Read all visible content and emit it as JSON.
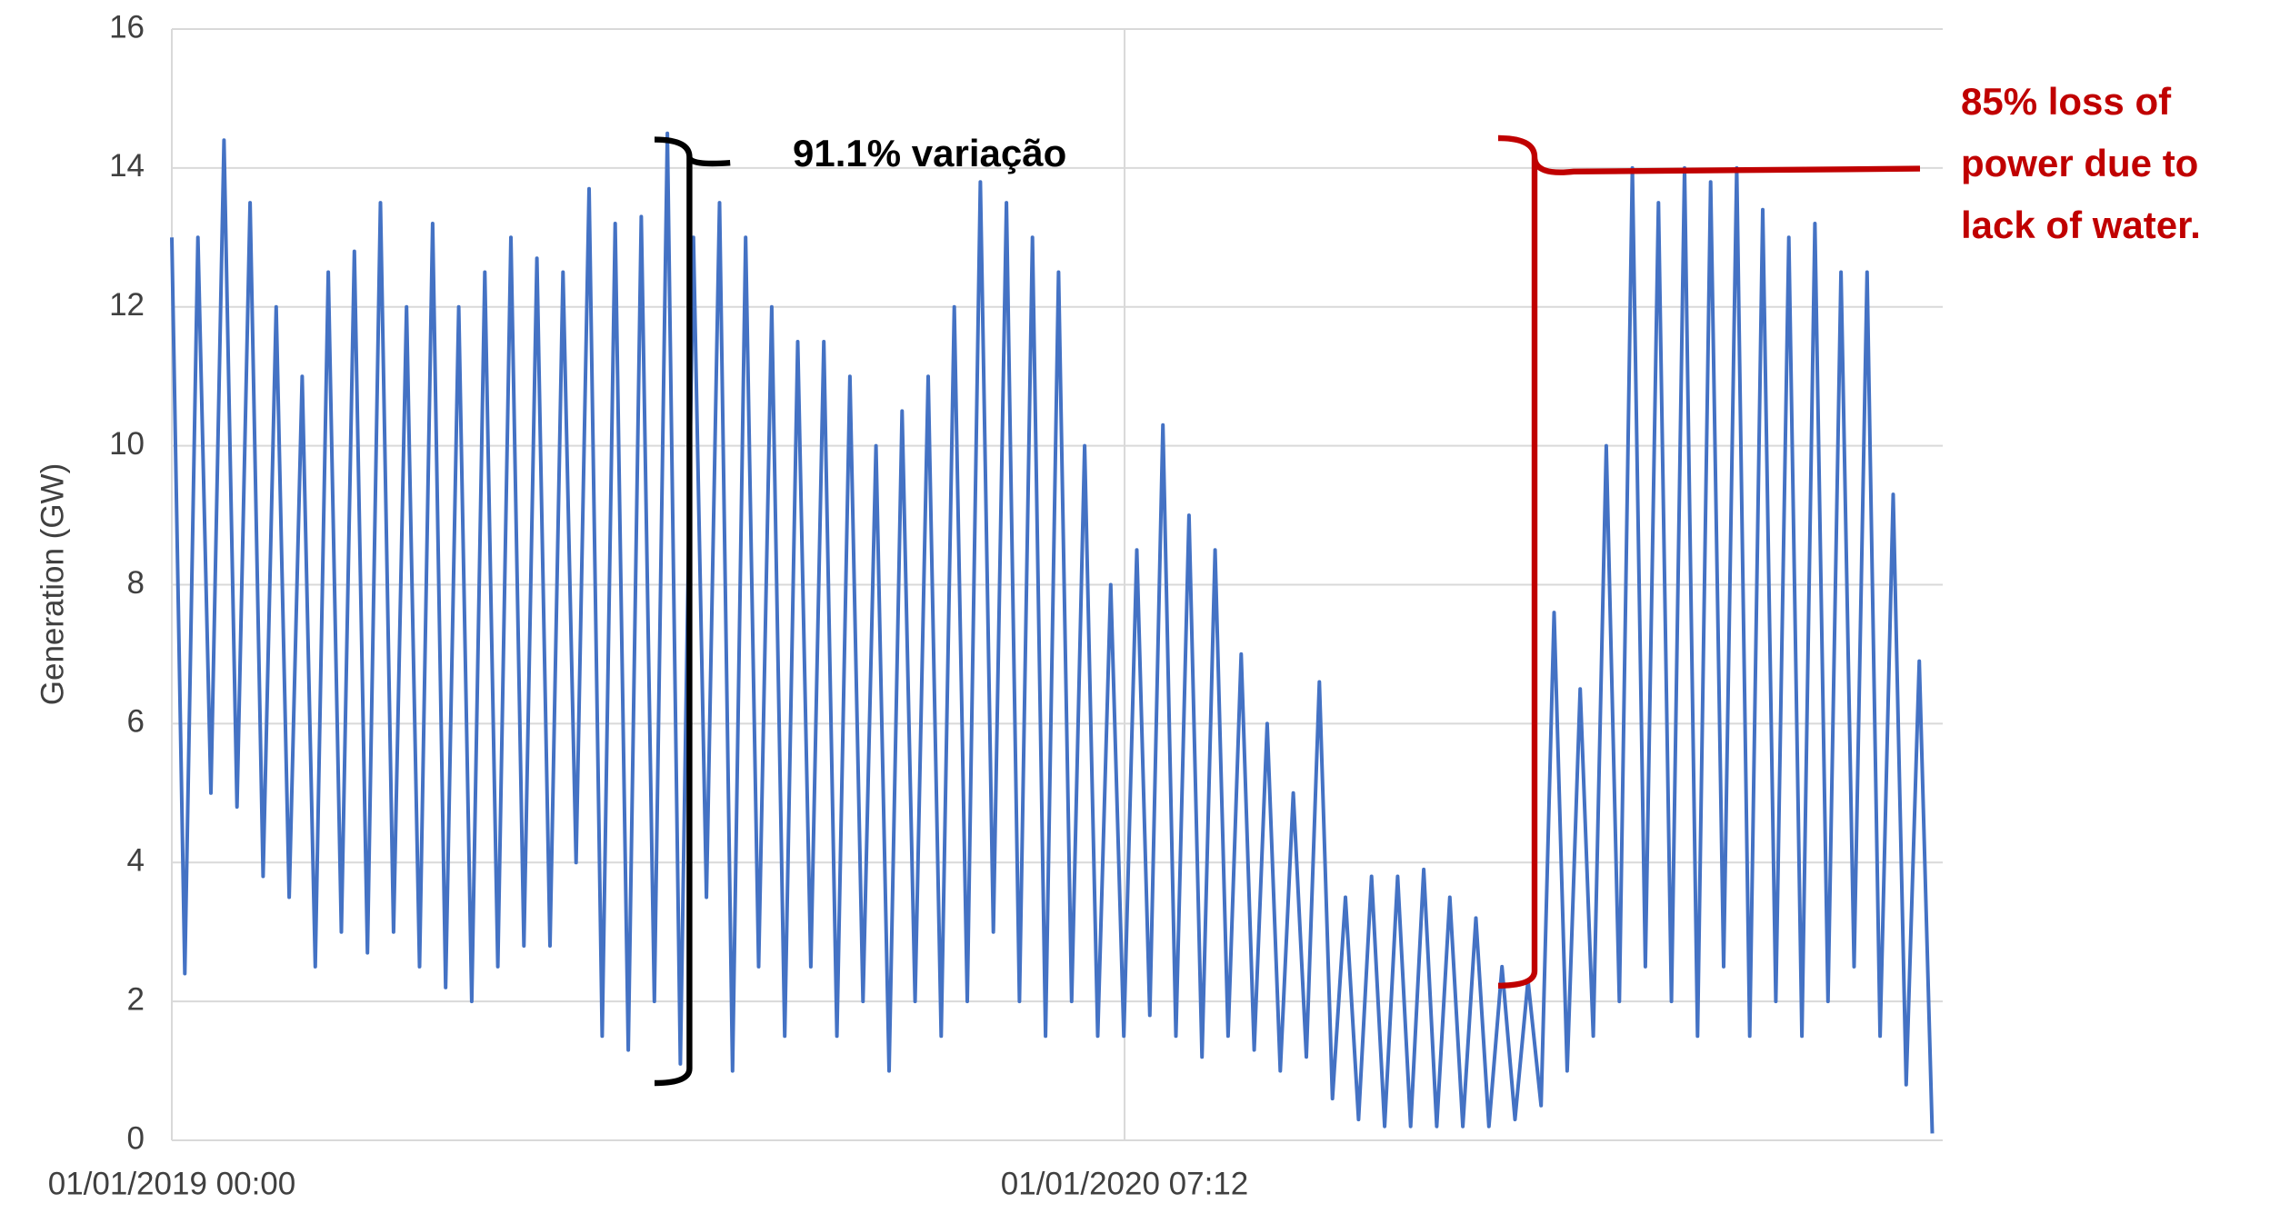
{
  "chart_data": {
    "type": "line",
    "y_label": "Generation (GW)",
    "xlim": [
      43466,
      44145
    ],
    "xticks": [
      {
        "value": 43466,
        "label": "01/01/2019 00:00"
      },
      {
        "value": 43831.3,
        "label": "01/01/2020 07:12"
      }
    ],
    "ylim": [
      0,
      16
    ],
    "yticks": [
      0,
      2,
      4,
      6,
      8,
      10,
      12,
      14,
      16
    ],
    "grid": true,
    "x": [
      43466,
      43471,
      43476,
      43481,
      43486,
      43491,
      43496,
      43501,
      43506,
      43511,
      43516,
      43521,
      43526,
      43531,
      43536,
      43541,
      43546,
      43551,
      43556,
      43561,
      43566,
      43571,
      43576,
      43581,
      43586,
      43591,
      43596,
      43601,
      43606,
      43611,
      43616,
      43621,
      43626,
      43631,
      43636,
      43641,
      43646,
      43651,
      43656,
      43661,
      43666,
      43671,
      43676,
      43681,
      43686,
      43691,
      43696,
      43701,
      43706,
      43711,
      43716,
      43721,
      43726,
      43731,
      43736,
      43741,
      43746,
      43751,
      43756,
      43761,
      43766,
      43771,
      43776,
      43781,
      43786,
      43791,
      43796,
      43801,
      43806,
      43811,
      43816,
      43821,
      43826,
      43831,
      43836,
      43841,
      43846,
      43851,
      43856,
      43861,
      43866,
      43871,
      43876,
      43881,
      43886,
      43891,
      43896,
      43901,
      43906,
      43911,
      43916,
      43921,
      43926,
      43931,
      43936,
      43941,
      43946,
      43951,
      43956,
      43961,
      43966,
      43971,
      43976,
      43981,
      43986,
      43991,
      43996,
      44001,
      44006,
      44011,
      44016,
      44021,
      44026,
      44031,
      44036,
      44041,
      44046,
      44051,
      44056,
      44061,
      44066,
      44071,
      44076,
      44081,
      44086,
      44091,
      44096,
      44101,
      44106,
      44111,
      44116,
      44121,
      44126,
      44131,
      44136,
      44141
    ],
    "series": [
      {
        "name": "Generation",
        "color": "#4472c4",
        "values": [
          13,
          2.4,
          13,
          5,
          14.4,
          4.8,
          13.5,
          3.8,
          12,
          3.5,
          11,
          2.5,
          12.5,
          3,
          12.8,
          2.7,
          13.5,
          3,
          12,
          2.5,
          13.2,
          2.2,
          12,
          2,
          12.5,
          2.5,
          13,
          2.8,
          12.7,
          2.8,
          12.5,
          4,
          13.7,
          1.5,
          13.2,
          1.3,
          13.3,
          2,
          14.5,
          1.1,
          13,
          3.5,
          13.5,
          1,
          13,
          2.5,
          12,
          1.5,
          11.5,
          2.5,
          11.5,
          1.5,
          11,
          2,
          10,
          1,
          10.5,
          2,
          11,
          1.5,
          12,
          2,
          13.8,
          3,
          13.5,
          2,
          13,
          1.5,
          12.5,
          2,
          10,
          1.5,
          8,
          1.5,
          8.5,
          1.8,
          10.3,
          1.5,
          9,
          1.2,
          8.5,
          1.5,
          7,
          1.3,
          6,
          1,
          5,
          1.2,
          6.6,
          0.6,
          3.5,
          0.3,
          3.8,
          0.2,
          3.8,
          0.2,
          3.9,
          0.2,
          3.5,
          0.2,
          3.2,
          0.2,
          2.5,
          0.3,
          2.3,
          0.5,
          7.6,
          1,
          6.5,
          1.5,
          10,
          2,
          14,
          2.5,
          13.5,
          2,
          14,
          1.5,
          13.8,
          2.5,
          14,
          1.5,
          13.4,
          2,
          13,
          1.5,
          13.2,
          2,
          12.5,
          2.5,
          12.5,
          1.5,
          9.3,
          0.8,
          6.9,
          0.1
        ]
      }
    ],
    "annotations": [
      {
        "text": "91.1% variação",
        "color": "#000000"
      },
      {
        "lines": [
          "85% loss of",
          "power due to",
          "lack of water."
        ],
        "color": "#c00000"
      }
    ]
  }
}
